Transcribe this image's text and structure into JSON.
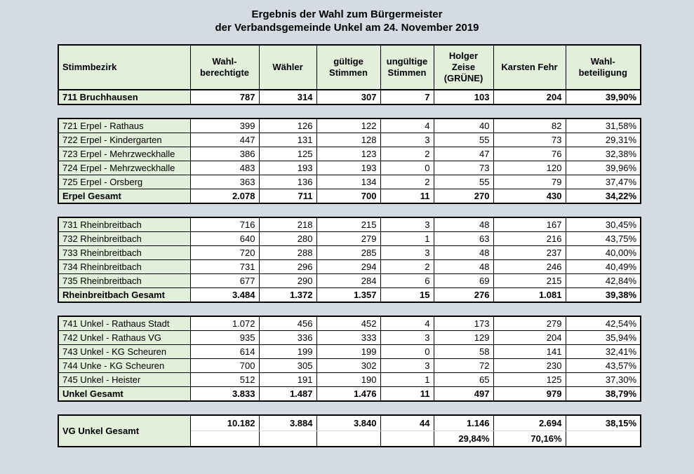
{
  "colors": {
    "page_bg": "#d4dbe3",
    "cell_green": "#e2efda",
    "grid": "#000000",
    "subrow_divider": "#d9d9d9"
  },
  "title": {
    "line1": "Ergebnis der Wahl zum Bürgermeister",
    "line2": "der Verbandsgemeinde Unkel am 24. November 2019"
  },
  "table": {
    "columns": [
      "Stimmbezirk",
      "Wahl-\nberechtigte",
      "Wähler",
      "gültige\nStimmen",
      "ungültige\nStimmen",
      "Holger\nZeise\n(GRÜNE)",
      "Karsten Fehr",
      "Wahl-\nbeteiligung"
    ],
    "blocks": [
      {
        "name": "bruchhausen",
        "has_header": true,
        "rows": [
          {
            "label": "711 Bruchhausen",
            "bold": true,
            "values": [
              "787",
              "314",
              "307",
              "7",
              "103",
              "204",
              "39,90%"
            ]
          }
        ]
      },
      {
        "name": "erpel",
        "has_header": false,
        "rows": [
          {
            "label": "721 Erpel - Rathaus",
            "bold": false,
            "values": [
              "399",
              "126",
              "122",
              "4",
              "40",
              "82",
              "31,58%"
            ]
          },
          {
            "label": "722 Erpel - Kindergarten",
            "bold": false,
            "values": [
              "447",
              "131",
              "128",
              "3",
              "55",
              "73",
              "29,31%"
            ]
          },
          {
            "label": "723 Erpel - Mehrzweckhalle",
            "bold": false,
            "values": [
              "386",
              "125",
              "123",
              "2",
              "47",
              "76",
              "32,38%"
            ]
          },
          {
            "label": "724 Erpel - Mehrzweckhalle",
            "bold": false,
            "values": [
              "483",
              "193",
              "193",
              "0",
              "73",
              "120",
              "39,96%"
            ]
          },
          {
            "label": "725 Erpel - Orsberg",
            "bold": false,
            "values": [
              "363",
              "136",
              "134",
              "2",
              "55",
              "79",
              "37,47%"
            ]
          },
          {
            "label": "Erpel Gesamt",
            "bold": true,
            "values": [
              "2.078",
              "711",
              "700",
              "11",
              "270",
              "430",
              "34,22%"
            ]
          }
        ]
      },
      {
        "name": "rheinbreitbach",
        "has_header": false,
        "rows": [
          {
            "label": "731 Rheinbreitbach",
            "bold": false,
            "values": [
              "716",
              "218",
              "215",
              "3",
              "48",
              "167",
              "30,45%"
            ]
          },
          {
            "label": "732 Rheinbreitbach",
            "bold": false,
            "values": [
              "640",
              "280",
              "279",
              "1",
              "63",
              "216",
              "43,75%"
            ]
          },
          {
            "label": "733 Rheinbreitbach",
            "bold": false,
            "values": [
              "720",
              "288",
              "285",
              "3",
              "48",
              "237",
              "40,00%"
            ]
          },
          {
            "label": "734 Rheinbreitbach",
            "bold": false,
            "values": [
              "731",
              "296",
              "294",
              "2",
              "48",
              "246",
              "40,49%"
            ]
          },
          {
            "label": "735 Rheinbreitbach",
            "bold": false,
            "values": [
              "677",
              "290",
              "284",
              "6",
              "69",
              "215",
              "42,84%"
            ]
          },
          {
            "label": "Rheinbreitbach Gesamt",
            "bold": true,
            "values": [
              "3.484",
              "1.372",
              "1.357",
              "15",
              "276",
              "1.081",
              "39,38%"
            ]
          }
        ]
      },
      {
        "name": "unkel",
        "has_header": false,
        "rows": [
          {
            "label": "741 Unkel - Rathaus Stadt",
            "bold": false,
            "values": [
              "1.072",
              "456",
              "452",
              "4",
              "173",
              "279",
              "42,54%"
            ]
          },
          {
            "label": "742 Unkel - Rathaus VG",
            "bold": false,
            "values": [
              "935",
              "336",
              "333",
              "3",
              "129",
              "204",
              "35,94%"
            ]
          },
          {
            "label": "743 Unkel - KG Scheuren",
            "bold": false,
            "values": [
              "614",
              "199",
              "199",
              "0",
              "58",
              "141",
              "32,41%"
            ]
          },
          {
            "label": "744 Unke - KG Scheuren",
            "bold": false,
            "values": [
              "700",
              "305",
              "302",
              "3",
              "72",
              "230",
              "43,57%"
            ]
          },
          {
            "label": "745 Unkel - Heister",
            "bold": false,
            "values": [
              "512",
              "191",
              "190",
              "1",
              "65",
              "125",
              "37,30%"
            ]
          },
          {
            "label": "Unkel Gesamt",
            "bold": true,
            "values": [
              "3.833",
              "1.487",
              "1.476",
              "11",
              "497",
              "979",
              "38,79%"
            ]
          }
        ]
      },
      {
        "name": "vg-gesamt",
        "has_header": false,
        "merged_label": "VG Unkel Gesamt",
        "sub_rows": [
          [
            "10.182",
            "3.884",
            "3.840",
            "44",
            "1.146",
            "2.694",
            "38,15%"
          ],
          [
            "",
            "",
            "",
            "",
            "29,84%",
            "70,16%",
            ""
          ]
        ]
      }
    ]
  }
}
